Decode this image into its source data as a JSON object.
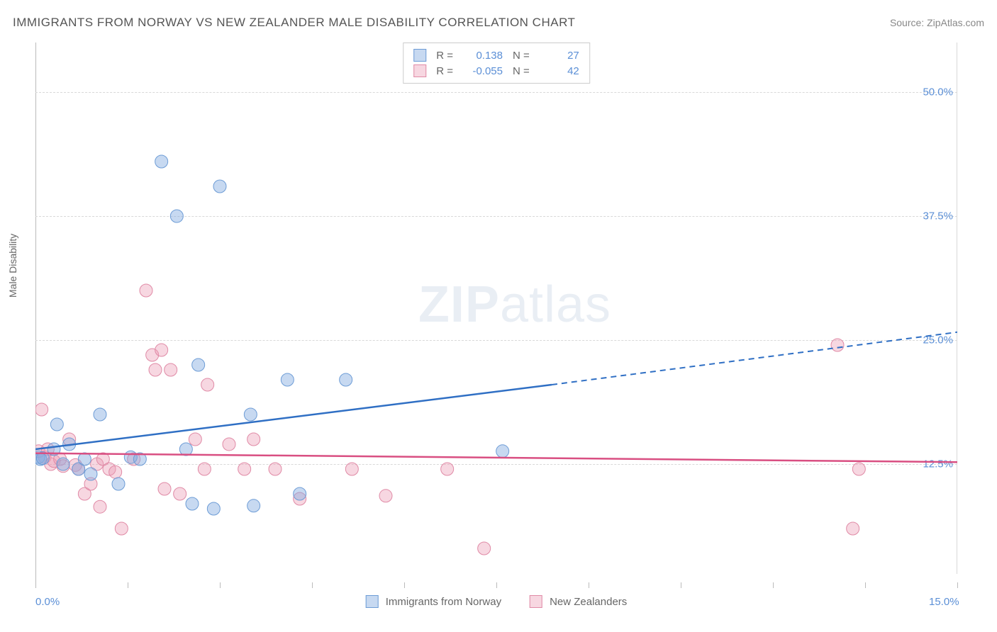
{
  "header": {
    "title": "IMMIGRANTS FROM NORWAY VS NEW ZEALANDER MALE DISABILITY CORRELATION CHART",
    "source_prefix": "Source: ",
    "source_name": "ZipAtlas.com"
  },
  "axes": {
    "y_label": "Male Disability",
    "xlim": [
      0.0,
      15.0
    ],
    "ylim": [
      0.0,
      55.0
    ],
    "x_ticks": [
      0.0,
      1.5,
      3.0,
      4.5,
      6.0,
      7.5,
      9.0,
      10.5,
      12.0,
      13.5,
      15.0
    ],
    "x_tick_labels": {
      "0": "0.0%",
      "10": "15.0%"
    },
    "y_gridlines": [
      12.5,
      25.0,
      37.5,
      50.0
    ],
    "y_tick_labels": [
      "12.5%",
      "25.0%",
      "37.5%",
      "50.0%"
    ],
    "grid_color": "#d8d8d8",
    "axis_color": "#bbbbbb",
    "tick_label_color": "#5b8fd6",
    "background_color": "#ffffff"
  },
  "series": {
    "norway": {
      "label": "Immigrants from Norway",
      "color_fill": "rgba(130,170,225,0.45)",
      "color_stroke": "#6d9cd6",
      "line_color": "#2f6fc4",
      "r_value": "0.138",
      "n_value": "27",
      "trend_solid": {
        "x1": 0.0,
        "y1": 14.0,
        "x2": 8.4,
        "y2": 20.5
      },
      "trend_dash": {
        "x1": 8.4,
        "y1": 20.5,
        "x2": 15.0,
        "y2": 25.8
      },
      "marker_radius": 9,
      "points": [
        [
          0.05,
          13.2
        ],
        [
          0.08,
          13.0
        ],
        [
          0.12,
          13.1
        ],
        [
          0.3,
          14.0
        ],
        [
          0.35,
          16.5
        ],
        [
          0.45,
          12.5
        ],
        [
          0.55,
          14.5
        ],
        [
          0.7,
          12.0
        ],
        [
          0.8,
          13.0
        ],
        [
          0.9,
          11.5
        ],
        [
          1.05,
          17.5
        ],
        [
          1.35,
          10.5
        ],
        [
          1.55,
          13.2
        ],
        [
          1.7,
          13.0
        ],
        [
          2.05,
          43.0
        ],
        [
          2.3,
          37.5
        ],
        [
          2.45,
          14.0
        ],
        [
          2.55,
          8.5
        ],
        [
          2.65,
          22.5
        ],
        [
          2.9,
          8.0
        ],
        [
          3.0,
          40.5
        ],
        [
          3.5,
          17.5
        ],
        [
          3.55,
          8.3
        ],
        [
          4.1,
          21.0
        ],
        [
          4.3,
          9.5
        ],
        [
          5.05,
          21.0
        ],
        [
          7.6,
          13.8
        ]
      ]
    },
    "nz": {
      "label": "New Zealanders",
      "color_fill": "rgba(235,155,180,0.40)",
      "color_stroke": "#e08aa6",
      "line_color": "#d94f82",
      "r_value": "-0.055",
      "n_value": "42",
      "trend_solid": {
        "x1": 0.0,
        "y1": 13.6,
        "x2": 15.0,
        "y2": 12.7
      },
      "marker_radius": 9,
      "points": [
        [
          0.05,
          13.8
        ],
        [
          0.1,
          18.0
        ],
        [
          0.15,
          13.2
        ],
        [
          0.2,
          14.0
        ],
        [
          0.25,
          12.5
        ],
        [
          0.3,
          12.8
        ],
        [
          0.4,
          13.0
        ],
        [
          0.45,
          12.3
        ],
        [
          0.55,
          15.0
        ],
        [
          0.65,
          12.4
        ],
        [
          0.7,
          12.0
        ],
        [
          0.8,
          9.5
        ],
        [
          0.9,
          10.5
        ],
        [
          1.0,
          12.5
        ],
        [
          1.05,
          8.2
        ],
        [
          1.1,
          13.0
        ],
        [
          1.2,
          12.0
        ],
        [
          1.3,
          11.7
        ],
        [
          1.4,
          6.0
        ],
        [
          1.6,
          13.0
        ],
        [
          1.8,
          30.0
        ],
        [
          1.9,
          23.5
        ],
        [
          1.95,
          22.0
        ],
        [
          2.05,
          24.0
        ],
        [
          2.1,
          10.0
        ],
        [
          2.2,
          22.0
        ],
        [
          2.35,
          9.5
        ],
        [
          2.6,
          15.0
        ],
        [
          2.75,
          12.0
        ],
        [
          2.8,
          20.5
        ],
        [
          3.15,
          14.5
        ],
        [
          3.4,
          12.0
        ],
        [
          3.55,
          15.0
        ],
        [
          3.9,
          12.0
        ],
        [
          4.3,
          9.0
        ],
        [
          5.15,
          12.0
        ],
        [
          5.7,
          9.3
        ],
        [
          6.7,
          12.0
        ],
        [
          7.3,
          4.0
        ],
        [
          13.05,
          24.5
        ],
        [
          13.3,
          6.0
        ],
        [
          13.4,
          12.0
        ]
      ]
    }
  },
  "stats_box": {
    "r_prefix": "R =",
    "n_prefix": "N ="
  },
  "watermark": {
    "prefix": "ZIP",
    "suffix": "atlas"
  }
}
